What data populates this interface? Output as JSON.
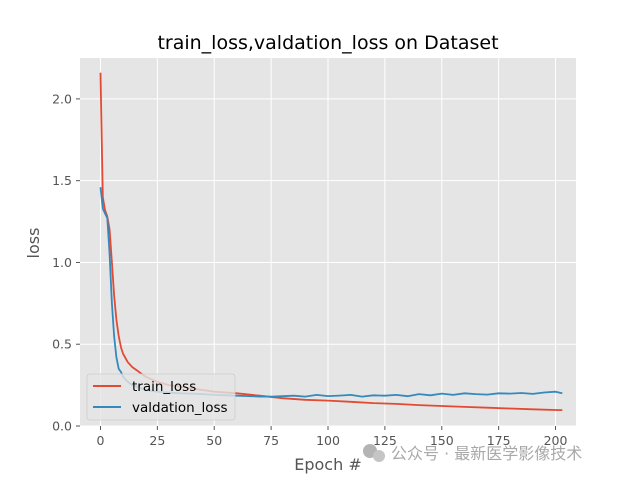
{
  "chart_data": {
    "type": "line",
    "title": "train_loss,valdation_loss on Dataset",
    "xlabel": "Epoch #",
    "ylabel": "loss",
    "xlim": [
      -9,
      209
    ],
    "ylim": [
      0,
      2.25
    ],
    "xticks": [
      0,
      25,
      50,
      75,
      100,
      125,
      150,
      175,
      200
    ],
    "yticks": [
      0.0,
      0.5,
      1.0,
      1.5,
      2.0
    ],
    "ytick_labels": [
      "0.0",
      "0.5",
      "1.0",
      "1.5",
      "2.0"
    ],
    "grid": true,
    "legend_position": "lower-left",
    "series": [
      {
        "name": "train_loss",
        "color": "#e24a33",
        "x": [
          0,
          1,
          2,
          3,
          4,
          5,
          6,
          7,
          8,
          9,
          10,
          12,
          14,
          16,
          18,
          20,
          25,
          30,
          40,
          50,
          60,
          70,
          80,
          90,
          100,
          110,
          120,
          130,
          140,
          150,
          160,
          170,
          180,
          190,
          200,
          203
        ],
        "y": [
          2.16,
          1.4,
          1.32,
          1.28,
          1.2,
          1.0,
          0.8,
          0.65,
          0.55,
          0.48,
          0.44,
          0.39,
          0.36,
          0.34,
          0.32,
          0.3,
          0.27,
          0.25,
          0.23,
          0.21,
          0.2,
          0.185,
          0.17,
          0.16,
          0.155,
          0.148,
          0.14,
          0.135,
          0.128,
          0.122,
          0.117,
          0.112,
          0.107,
          0.102,
          0.098,
          0.097
        ]
      },
      {
        "name": "valdation_loss",
        "color": "#348abd",
        "x": [
          0,
          1,
          2,
          3,
          4,
          5,
          6,
          7,
          8,
          9,
          10,
          12,
          14,
          16,
          18,
          20,
          25,
          30,
          35,
          40,
          45,
          50,
          55,
          60,
          65,
          70,
          75,
          80,
          85,
          90,
          95,
          100,
          105,
          110,
          115,
          120,
          125,
          130,
          135,
          140,
          145,
          150,
          155,
          160,
          165,
          170,
          175,
          180,
          185,
          190,
          195,
          200,
          203
        ],
        "y": [
          1.46,
          1.33,
          1.3,
          1.27,
          1.05,
          0.75,
          0.55,
          0.42,
          0.35,
          0.33,
          0.3,
          0.27,
          0.25,
          0.24,
          0.23,
          0.22,
          0.21,
          0.205,
          0.2,
          0.198,
          0.195,
          0.19,
          0.188,
          0.185,
          0.183,
          0.18,
          0.18,
          0.182,
          0.185,
          0.18,
          0.19,
          0.183,
          0.186,
          0.19,
          0.18,
          0.188,
          0.185,
          0.19,
          0.182,
          0.195,
          0.188,
          0.198,
          0.19,
          0.2,
          0.195,
          0.192,
          0.2,
          0.198,
          0.202,
          0.196,
          0.205,
          0.21,
          0.2
        ]
      }
    ]
  },
  "watermark": "公众号 · 最新医学影像技术"
}
